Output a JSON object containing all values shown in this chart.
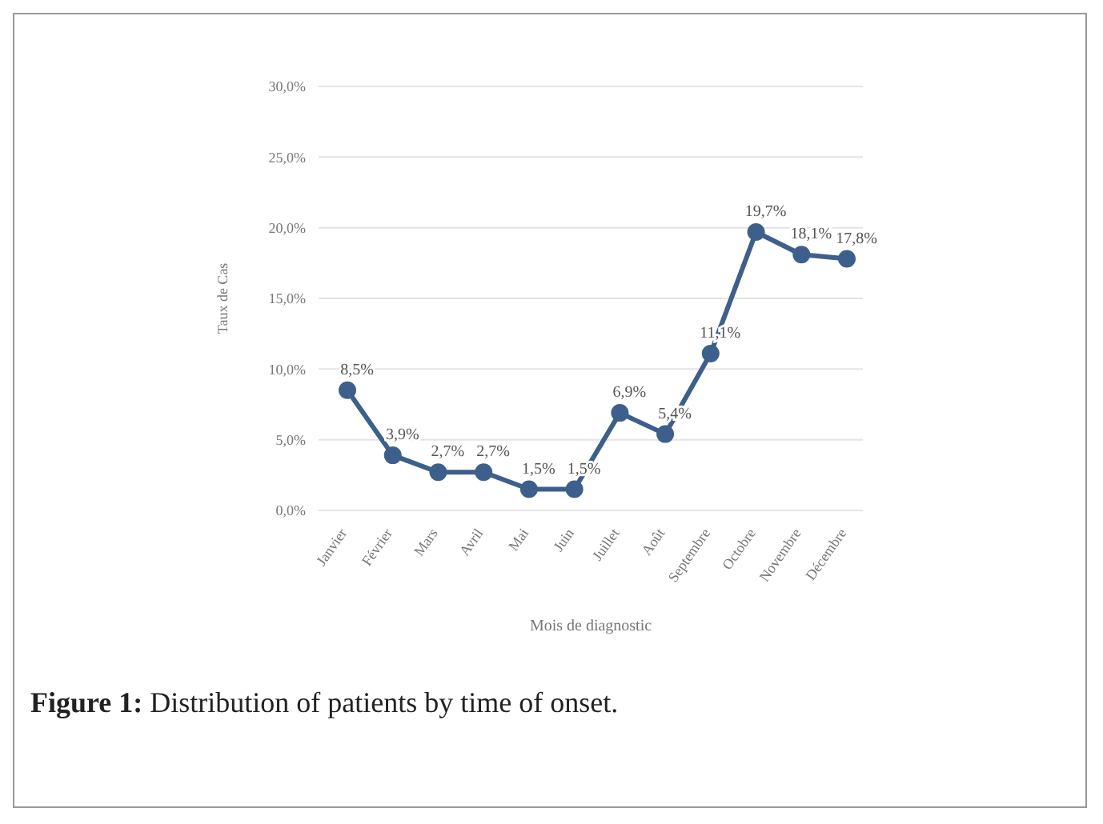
{
  "chart_data": {
    "type": "line",
    "xlabel": "Mois de diagnostic",
    "ylabel": "Taux de Cas",
    "categories": [
      "Janvier",
      "Février",
      "Mars",
      "Avril",
      "Mai",
      "Juin",
      "Juillet",
      "Août",
      "Septembre",
      "Octobre",
      "Novembre",
      "Décembre"
    ],
    "series": [
      {
        "color": "#3d5f8c",
        "values": [
          8.5,
          3.9,
          2.7,
          2.7,
          1.5,
          1.5,
          6.9,
          5.4,
          11.1,
          19.7,
          18.1,
          17.8
        ],
        "value_labels": [
          "8,5%",
          "3,9%",
          "2,7%",
          "2,7%",
          "1,5%",
          "1,5%",
          "6,9%",
          "5,4%",
          "11,1%",
          "19,7%",
          "18,1%",
          "17,8%"
        ]
      }
    ],
    "ylim": [
      0,
      30
    ],
    "yticks": [
      {
        "value": 0,
        "label": "0,0%"
      },
      {
        "value": 5,
        "label": "5,0%"
      },
      {
        "value": 10,
        "label": "10,0%"
      },
      {
        "value": 15,
        "label": "15,0%"
      },
      {
        "value": 20,
        "label": "20,0%"
      },
      {
        "value": 25,
        "label": "25,0%"
      },
      {
        "value": 30,
        "label": "30,0%"
      }
    ],
    "grid": "y",
    "marker": "circle",
    "line_style": "solid",
    "legend": false,
    "annotations": [
      "Figure 1: Distribution of patients by time of onset."
    ]
  }
}
